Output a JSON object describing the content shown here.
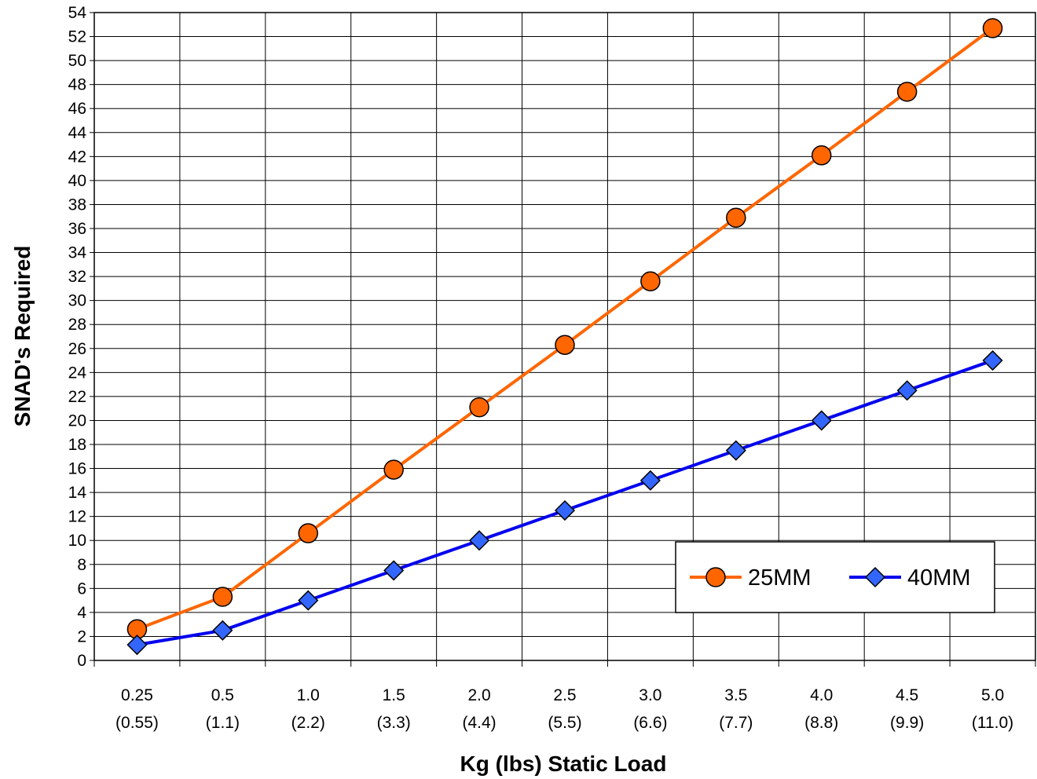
{
  "chart_data": {
    "type": "line",
    "title": "",
    "xlabel": "Kg (lbs) Static Load",
    "ylabel": "SNAD's Required",
    "categories": [
      "0.25",
      "0.5",
      "1.0",
      "1.5",
      "2.0",
      "2.5",
      "3.0",
      "3.5",
      "4.0",
      "4.5",
      "5.0"
    ],
    "category_sublabels": [
      "(0.55)",
      "(1.1)",
      "(2.2)",
      "(3.3)",
      "(4.4)",
      "(5.5)",
      "(6.6)",
      "(7.7)",
      "(8.8)",
      "(9.9)",
      "(11.0)"
    ],
    "ylim": [
      0,
      54
    ],
    "ytick_step": 2,
    "grid": true,
    "legend_position": "bottom-right",
    "series": [
      {
        "name": "25MM",
        "color": "#FF6600",
        "marker_color": "#FF6600",
        "marker": "circle",
        "values": [
          2.6,
          5.3,
          10.6,
          15.9,
          21.1,
          26.3,
          31.6,
          36.9,
          42.1,
          47.4,
          52.7
        ]
      },
      {
        "name": "40MM",
        "color": "#0000EE",
        "marker_color": "#3366FF",
        "marker": "diamond",
        "values": [
          1.3,
          2.5,
          5.0,
          7.5,
          10.0,
          12.5,
          15.0,
          17.5,
          20.0,
          22.5,
          25.0
        ]
      }
    ]
  }
}
